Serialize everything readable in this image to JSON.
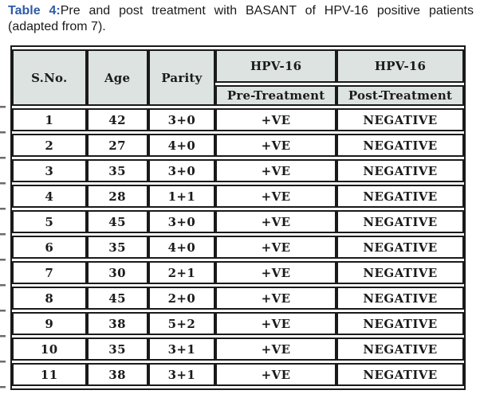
{
  "caption": {
    "label": "Table 4:",
    "text": "Pre and post treatment with BASANT of  HPV-16 positive patients (adapted from 7)."
  },
  "colors": {
    "caption_label": "#2d5ba8",
    "header_bg": "#dce3e0",
    "grid": "#1a1a1a",
    "text": "#1b1b1b",
    "page_bg": "#ffffff"
  },
  "table": {
    "column_headers": {
      "sno": "S.No.",
      "age": "Age",
      "parity": "Parity",
      "hpv16_pre_group": "HPV-16",
      "hpv16_post_group": "HPV-16",
      "pre_treatment": "Pre-Treatment",
      "post_treatment": "Post-Treatment"
    },
    "rows": [
      [
        "1",
        "42",
        "3+0",
        "+VE",
        "NEGATIVE"
      ],
      [
        "2",
        "27",
        "4+0",
        "+VE",
        "NEGATIVE"
      ],
      [
        "3",
        "35",
        "3+0",
        "+VE",
        "NEGATIVE"
      ],
      [
        "4",
        "28",
        "1+1",
        "+VE",
        "NEGATIVE"
      ],
      [
        "5",
        "45",
        "3+0",
        "+VE",
        "NEGATIVE"
      ],
      [
        "6",
        "35",
        "4+0",
        "+VE",
        "NEGATIVE"
      ],
      [
        "7",
        "30",
        "2+1",
        "+VE",
        "NEGATIVE"
      ],
      [
        "8",
        "45",
        "2+0",
        "+VE",
        "NEGATIVE"
      ],
      [
        "9",
        "38",
        "5+2",
        "+VE",
        "NEGATIVE"
      ],
      [
        "10",
        "35",
        "3+1",
        "+VE",
        "NEGATIVE"
      ],
      [
        "11",
        "38",
        "3+1",
        "+VE",
        "NEGATIVE"
      ]
    ]
  }
}
